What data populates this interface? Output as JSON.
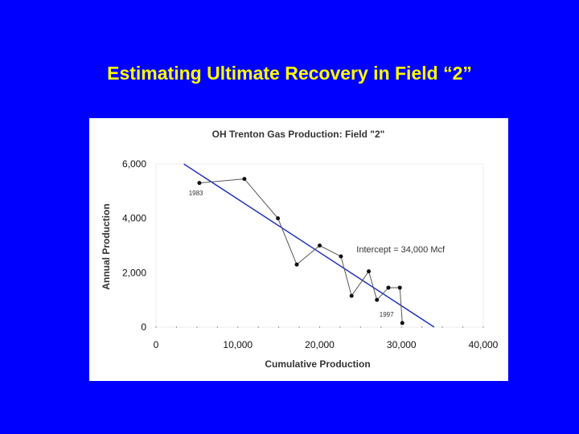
{
  "slide": {
    "title": "Estimating Ultimate Recovery in Field “2”"
  },
  "colors": {
    "background": "#0000ff",
    "title": "#ffff00",
    "trendline": "#2233bb",
    "data": "#111111"
  },
  "chart_data": {
    "type": "scatter",
    "title": "OH Trenton Gas Production: Field \"2\"",
    "xlabel": "Cumulative Production",
    "ylabel": "Annual Production",
    "xlim": [
      0,
      40000
    ],
    "ylim": [
      0,
      6000
    ],
    "xticks": [
      "0",
      "10,000",
      "20,000",
      "30,000",
      "40,000"
    ],
    "yticks": [
      "0",
      "2,000",
      "4,000",
      "6,000"
    ],
    "grid": false,
    "series": [
      {
        "x": [
          5300,
          10800,
          14900,
          17200,
          20000,
          22600,
          23900,
          26000,
          27000,
          28400,
          29800,
          30100
        ],
        "y": [
          5300,
          5450,
          4000,
          2300,
          3000,
          2600,
          1150,
          2050,
          1000,
          1450,
          1450,
          150
        ]
      }
    ],
    "trendline": {
      "x": [
        3400,
        34000
      ],
      "y": [
        6000,
        0
      ]
    },
    "annotations": [
      {
        "text": "1983",
        "x": 4000,
        "y": 4850
      },
      {
        "text": "Intercept = 34,000 Mcf",
        "x": 24500,
        "y": 2750
      },
      {
        "text": "1997",
        "x": 27300,
        "y": 380
      }
    ]
  }
}
